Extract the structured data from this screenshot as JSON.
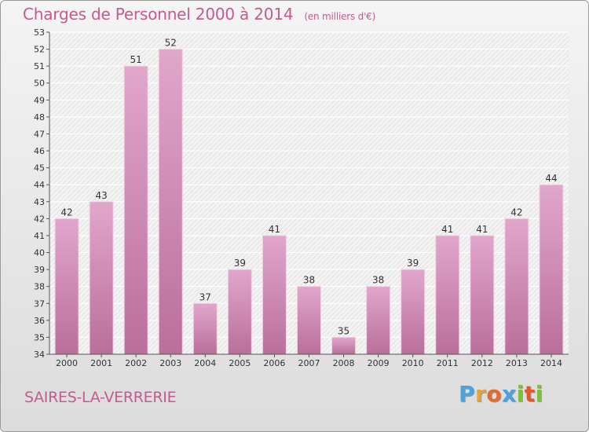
{
  "header": {
    "title": "Charges de Personnel 2000 à 2014",
    "subtitle": "(en milliers d'€)"
  },
  "footer": {
    "commune": "SAIRES-LA-VERRERIE",
    "logo_letters": [
      "P",
      "r",
      "o",
      "x",
      "i",
      "t",
      "i"
    ]
  },
  "colors": {
    "title": "#c45a91",
    "bar_top": "#e2a6cb",
    "bar_bottom": "#b96f9b",
    "bar_edge": "#f2d2e5",
    "logo": [
      "#4aa3df",
      "#e8a23a",
      "#e36c2b",
      "#4aa3df",
      "#7fbf3f",
      "#e3572b",
      "#7fbf3f"
    ]
  },
  "chart_data": {
    "type": "bar",
    "title": "Charges de Personnel 2000 à 2014",
    "subtitle": "(en milliers d'€)",
    "categories": [
      "2000",
      "2001",
      "2002",
      "2003",
      "2004",
      "2005",
      "2006",
      "2007",
      "2008",
      "2009",
      "2010",
      "2011",
      "2012",
      "2013",
      "2014"
    ],
    "values": [
      42,
      43,
      51,
      52,
      37,
      39,
      41,
      38,
      35,
      38,
      39,
      41,
      41,
      42,
      44
    ],
    "ylim": [
      34,
      53
    ],
    "yticks": [
      34,
      35,
      36,
      37,
      38,
      39,
      40,
      41,
      42,
      43,
      44,
      45,
      46,
      47,
      48,
      49,
      50,
      51,
      52,
      53
    ],
    "grid": true,
    "legend": "none"
  }
}
